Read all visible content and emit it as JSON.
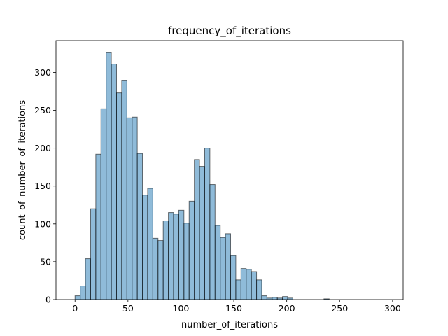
{
  "chart_data": {
    "type": "bar",
    "title": "frequency_of_iterations",
    "xlabel": "number_of_iterations",
    "ylabel": "count_of_number_of_iterations",
    "xlim": [
      -18,
      310
    ],
    "ylim": [
      0,
      342
    ],
    "xticks": [
      0,
      50,
      100,
      150,
      200,
      250,
      300
    ],
    "yticks": [
      0,
      50,
      100,
      150,
      200,
      250,
      300
    ],
    "grid": false,
    "bar_color": "#1f77b4",
    "bar_alpha": 0.5,
    "edge_color": "#000000",
    "bin_width": 4.9,
    "bin_start": 0,
    "counts": [
      5,
      18,
      54,
      120,
      192,
      252,
      326,
      311,
      273,
      289,
      240,
      241,
      193,
      138,
      147,
      81,
      78,
      104,
      115,
      113,
      118,
      101,
      130,
      185,
      176,
      200,
      152,
      98,
      82,
      87,
      58,
      26,
      41,
      40,
      37,
      26,
      5,
      2,
      3,
      2,
      4,
      2,
      0,
      0,
      0,
      0,
      0,
      0,
      1,
      0,
      0,
      0,
      0,
      0,
      0,
      0,
      0,
      0,
      0,
      0
    ]
  }
}
